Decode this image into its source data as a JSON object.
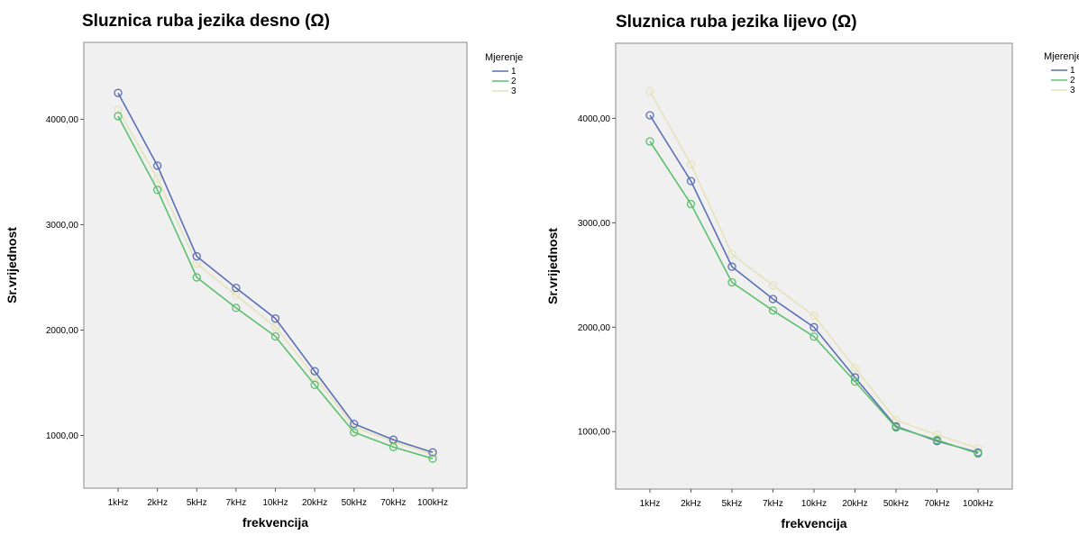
{
  "legend_title": "Mjerenje",
  "chart_data": [
    {
      "type": "line",
      "title": "Sluznica ruba jezika desno (Ω)",
      "xlabel": "frekvencija",
      "ylabel": "Sr.vrijednost",
      "categories": [
        "1kHz",
        "2kHz",
        "5kHz",
        "7kHz",
        "10kHz",
        "20kHz",
        "50kHz",
        "70kHz",
        "100kHz"
      ],
      "yticks": [
        "1000,00",
        "2000,00",
        "3000,00",
        "4000,00"
      ],
      "ylim": [
        500,
        4730
      ],
      "grid": false,
      "legend_placement": "right",
      "series": [
        {
          "name": "1",
          "color": "#5b6fb5",
          "values": [
            4250,
            3560,
            2700,
            2400,
            2110,
            1610,
            1110,
            960,
            840
          ]
        },
        {
          "name": "2",
          "color": "#5cbf6e",
          "values": [
            4030,
            3330,
            2500,
            2210,
            1940,
            1480,
            1030,
            890,
            780
          ]
        },
        {
          "name": "3",
          "color": "#e6e3bc",
          "values": [
            4090,
            3440,
            2630,
            2330,
            2030,
            1560,
            1080,
            940,
            820
          ]
        }
      ]
    },
    {
      "type": "line",
      "title": "Sluznica ruba jezika lijevo (Ω)",
      "xlabel": "frekvencija",
      "ylabel": "Sr.vrijednost",
      "categories": [
        "1kHz",
        "2kHz",
        "5kHz",
        "7kHz",
        "10kHz",
        "20kHz",
        "50kHz",
        "70kHz",
        "100kHz"
      ],
      "yticks": [
        "1000,00",
        "2000,00",
        "3000,00",
        "4000,00"
      ],
      "ylim": [
        450,
        4720
      ],
      "grid": false,
      "legend_placement": "right",
      "series": [
        {
          "name": "1",
          "color": "#5b6fb5",
          "values": [
            4030,
            3400,
            2580,
            2270,
            2000,
            1520,
            1050,
            910,
            800
          ]
        },
        {
          "name": "2",
          "color": "#5cbf6e",
          "values": [
            3780,
            3180,
            2430,
            2160,
            1910,
            1480,
            1040,
            920,
            790
          ]
        },
        {
          "name": "3",
          "color": "#e6e3bc",
          "values": [
            4260,
            3560,
            2700,
            2400,
            2110,
            1610,
            1110,
            970,
            840
          ]
        }
      ]
    }
  ]
}
